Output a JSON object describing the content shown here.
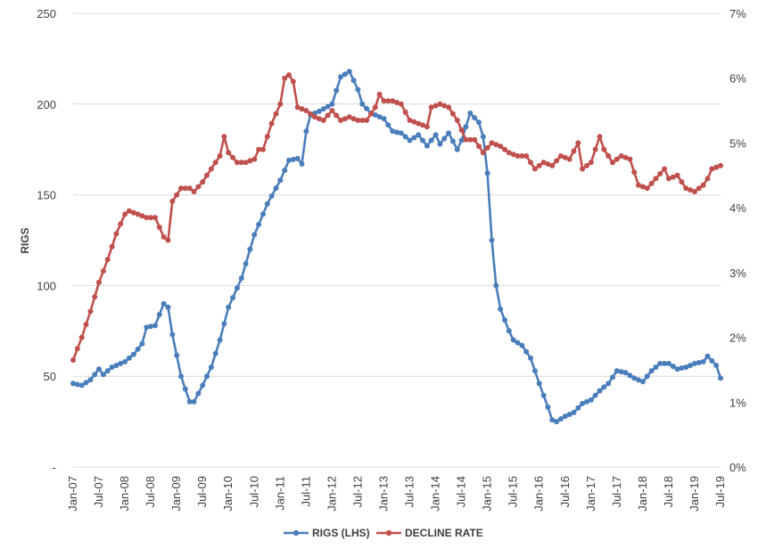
{
  "chart_data": {
    "type": "line",
    "ylabel": "RIGS",
    "y_left_ticks": [
      "-",
      "50",
      "100",
      "150",
      "200",
      "250"
    ],
    "y_right_ticks": [
      "0%",
      "1%",
      "2%",
      "3%",
      "4%",
      "5%",
      "6%",
      "7%"
    ],
    "ylim_left": [
      0,
      250
    ],
    "ylim_right": [
      0,
      0.07
    ],
    "y_right_format": "percent",
    "grid": true,
    "legend_position": "bottom",
    "x_tick_labels": [
      "Jan-07",
      "Jul-07",
      "Jan-08",
      "Jul-08",
      "Jan-09",
      "Jul-09",
      "Jan-10",
      "Jul-10",
      "Jan-11",
      "Jul-11",
      "Jan-12",
      "Jul-12",
      "Jan-13",
      "Jul-13",
      "Jan-14",
      "Jul-14",
      "Jan-15",
      "Jul-15",
      "Jan-16",
      "Jul-16",
      "Jan-17",
      "Jul-17",
      "Jan-18",
      "Jul-18",
      "Jan-19",
      "Jul-19"
    ],
    "x_start": "Jan-07",
    "x_end": "Jul-19",
    "series": [
      {
        "name": "RIGS (LHS)",
        "axis": "left",
        "color": "#4a7ebb",
        "anchors": [
          [
            "Jan-07",
            46
          ],
          [
            "Mar-07",
            45
          ],
          [
            "May-07",
            48
          ],
          [
            "Jul-07",
            54
          ],
          [
            "Aug-07",
            51
          ],
          [
            "Oct-07",
            55
          ],
          [
            "Jan-08",
            58
          ],
          [
            "Mar-08",
            62
          ],
          [
            "May-08",
            68
          ],
          [
            "Jun-08",
            77
          ],
          [
            "Aug-08",
            78
          ],
          [
            "Oct-08",
            90
          ],
          [
            "Nov-08",
            88
          ],
          [
            "Dec-08",
            73
          ],
          [
            "Feb-09",
            50
          ],
          [
            "Apr-09",
            36
          ],
          [
            "May-09",
            36
          ],
          [
            "Jul-09",
            45
          ],
          [
            "Sep-09",
            55
          ],
          [
            "Nov-09",
            70
          ],
          [
            "Jan-10",
            88
          ],
          [
            "Apr-10",
            104
          ],
          [
            "Jul-10",
            128
          ],
          [
            "Oct-10",
            145
          ],
          [
            "Jan-11",
            158
          ],
          [
            "Mar-11",
            169
          ],
          [
            "May-11",
            170
          ],
          [
            "Jun-11",
            167
          ],
          [
            "Jul-11",
            185
          ],
          [
            "Aug-11",
            194
          ],
          [
            "Oct-11",
            196
          ],
          [
            "Jan-12",
            200
          ],
          [
            "Mar-12",
            215
          ],
          [
            "May-12",
            218
          ],
          [
            "Jul-12",
            208
          ],
          [
            "Aug-12",
            200
          ],
          [
            "Oct-12",
            195
          ],
          [
            "Jan-13",
            192
          ],
          [
            "Mar-13",
            185
          ],
          [
            "May-13",
            184
          ],
          [
            "Jul-13",
            180
          ],
          [
            "Sep-13",
            183
          ],
          [
            "Nov-13",
            177
          ],
          [
            "Jan-14",
            183
          ],
          [
            "Feb-14",
            178
          ],
          [
            "Apr-14",
            184
          ],
          [
            "Jun-14",
            175
          ],
          [
            "Jul-14",
            180
          ],
          [
            "Sep-14",
            195
          ],
          [
            "Nov-14",
            190
          ],
          [
            "Dec-14",
            182
          ],
          [
            "Jan-15",
            162
          ],
          [
            "Feb-15",
            125
          ],
          [
            "Mar-15",
            100
          ],
          [
            "Apr-15",
            87
          ],
          [
            "Jun-15",
            75
          ],
          [
            "Jul-15",
            70
          ],
          [
            "Sep-15",
            67
          ],
          [
            "Nov-15",
            60
          ],
          [
            "Jan-16",
            46
          ],
          [
            "Mar-16",
            33
          ],
          [
            "Apr-16",
            26
          ],
          [
            "May-16",
            25
          ],
          [
            "Jul-16",
            28
          ],
          [
            "Sep-16",
            30
          ],
          [
            "Nov-16",
            35
          ],
          [
            "Jan-17",
            37
          ],
          [
            "Mar-17",
            42
          ],
          [
            "May-17",
            46
          ],
          [
            "Jul-17",
            53
          ],
          [
            "Sep-17",
            52
          ],
          [
            "Nov-17",
            49
          ],
          [
            "Jan-18",
            47
          ],
          [
            "Mar-18",
            53
          ],
          [
            "May-18",
            57
          ],
          [
            "Jul-18",
            57
          ],
          [
            "Sep-18",
            54
          ],
          [
            "Nov-18",
            55
          ],
          [
            "Jan-19",
            57
          ],
          [
            "Mar-19",
            58
          ],
          [
            "Apr-19",
            61
          ],
          [
            "Jun-19",
            56
          ],
          [
            "Jul-19",
            49
          ]
        ]
      },
      {
        "name": "DECLINE RATE",
        "axis": "right",
        "color": "#c0504d",
        "anchors": [
          [
            "Jan-07",
            0.0165
          ],
          [
            "Mar-07",
            0.02
          ],
          [
            "May-07",
            0.024
          ],
          [
            "Jul-07",
            0.0285
          ],
          [
            "Sep-07",
            0.032
          ],
          [
            "Nov-07",
            0.036
          ],
          [
            "Jan-08",
            0.039
          ],
          [
            "Feb-08",
            0.0395
          ],
          [
            "Apr-08",
            0.039
          ],
          [
            "Jun-08",
            0.0385
          ],
          [
            "Aug-08",
            0.0385
          ],
          [
            "Oct-08",
            0.0355
          ],
          [
            "Nov-08",
            0.035
          ],
          [
            "Dec-08",
            0.041
          ],
          [
            "Feb-09",
            0.043
          ],
          [
            "Apr-09",
            0.043
          ],
          [
            "May-09",
            0.0425
          ],
          [
            "Jul-09",
            0.044
          ],
          [
            "Sep-09",
            0.046
          ],
          [
            "Nov-09",
            0.048
          ],
          [
            "Dec-09",
            0.051
          ],
          [
            "Jan-10",
            0.0485
          ],
          [
            "Mar-10",
            0.047
          ],
          [
            "May-10",
            0.047
          ],
          [
            "Jul-10",
            0.0475
          ],
          [
            "Aug-10",
            0.049
          ],
          [
            "Sep-10",
            0.049
          ],
          [
            "Nov-10",
            0.053
          ],
          [
            "Jan-11",
            0.056
          ],
          [
            "Feb-11",
            0.06
          ],
          [
            "Mar-11",
            0.0605
          ],
          [
            "Apr-11",
            0.0595
          ],
          [
            "May-11",
            0.0555
          ],
          [
            "Jul-11",
            0.055
          ],
          [
            "Sep-11",
            0.054
          ],
          [
            "Nov-11",
            0.0535
          ],
          [
            "Jan-12",
            0.055
          ],
          [
            "Mar-12",
            0.0535
          ],
          [
            "May-12",
            0.054
          ],
          [
            "Jul-12",
            0.0535
          ],
          [
            "Sep-12",
            0.0535
          ],
          [
            "Nov-12",
            0.0555
          ],
          [
            "Dec-12",
            0.0575
          ],
          [
            "Jan-13",
            0.0565
          ],
          [
            "Mar-13",
            0.0565
          ],
          [
            "May-13",
            0.056
          ],
          [
            "Jul-13",
            0.0535
          ],
          [
            "Sep-13",
            0.053
          ],
          [
            "Nov-13",
            0.0525
          ],
          [
            "Dec-13",
            0.0555
          ],
          [
            "Feb-14",
            0.056
          ],
          [
            "Apr-14",
            0.0555
          ],
          [
            "Jun-14",
            0.0535
          ],
          [
            "Aug-14",
            0.0505
          ],
          [
            "Oct-14",
            0.0505
          ],
          [
            "Dec-14",
            0.0485
          ],
          [
            "Feb-15",
            0.05
          ],
          [
            "Apr-15",
            0.0495
          ],
          [
            "Jun-15",
            0.0485
          ],
          [
            "Aug-15",
            0.048
          ],
          [
            "Oct-15",
            0.048
          ],
          [
            "Dec-15",
            0.046
          ],
          [
            "Feb-16",
            0.047
          ],
          [
            "Apr-16",
            0.0465
          ],
          [
            "Jun-16",
            0.048
          ],
          [
            "Aug-16",
            0.0475
          ],
          [
            "Oct-16",
            0.05
          ],
          [
            "Nov-16",
            0.046
          ],
          [
            "Jan-17",
            0.047
          ],
          [
            "Mar-17",
            0.051
          ],
          [
            "Apr-17",
            0.049
          ],
          [
            "Jun-17",
            0.047
          ],
          [
            "Aug-17",
            0.048
          ],
          [
            "Oct-17",
            0.0475
          ],
          [
            "Dec-17",
            0.0435
          ],
          [
            "Feb-18",
            0.043
          ],
          [
            "Apr-18",
            0.0445
          ],
          [
            "Jun-18",
            0.046
          ],
          [
            "Jul-18",
            0.0445
          ],
          [
            "Sep-18",
            0.045
          ],
          [
            "Nov-18",
            0.043
          ],
          [
            "Jan-19",
            0.0425
          ],
          [
            "Mar-19",
            0.0435
          ],
          [
            "Apr-19",
            0.0445
          ],
          [
            "May-19",
            0.046
          ],
          [
            "Jul-19",
            0.0465
          ]
        ]
      }
    ]
  }
}
